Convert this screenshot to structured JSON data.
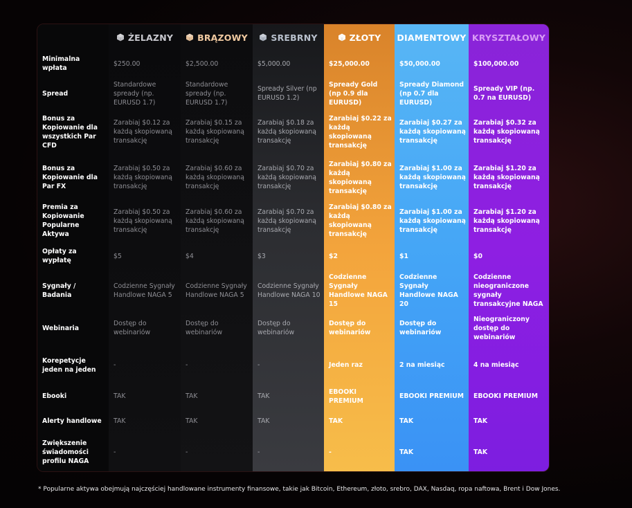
{
  "tiers": [
    {
      "name": "ŻELAZNY",
      "icon": "iron-cube-icon",
      "color": "#c9c9cf"
    },
    {
      "name": "BRĄZOWY",
      "icon": "bronze-cube-icon",
      "color": "#f0c9a0"
    },
    {
      "name": "SREBRNY",
      "icon": "silver-cube-icon",
      "color": "#b8c0cc"
    },
    {
      "name": "ZŁOTY",
      "icon": "gold-cube-icon",
      "color": "#ffffff"
    },
    {
      "name": "DIAMENTOWY",
      "icon": "",
      "color": "#ffffff"
    },
    {
      "name": "KRYSZTAŁOWY",
      "icon": "",
      "color": "#d99cf5"
    }
  ],
  "rows": [
    {
      "label": "Minimalna wpłata",
      "values": [
        "$250.00",
        "$2,500.00",
        "$5,000.00",
        "$25,000.00",
        "$50,000.00",
        "$100,000.00"
      ]
    },
    {
      "label": "Spread",
      "values": [
        "Standardowe spready (np. EURUSD 1.7)",
        "Standardowe spready (np. EURUSD 1.7)",
        "Spready Silver (np EURUSD 1.2)",
        "Spready Gold (np 0.9 dla EURUSD)",
        "Spready Diamond (np 0.7 dla EURUSD)",
        "Spready VIP (np. 0.7 na EURUSD)"
      ]
    },
    {
      "label": "Bonus za Kopiowanie dla wszystkich Par CFD",
      "values": [
        "Zarabiaj $0.12 za każdą skopiowaną transakcję",
        "Zarabiaj $0.15 za każdą skopiowaną transakcję",
        "Zarabiaj $0.18 za każdą skopiowaną transakcję",
        "Zarabiaj $0.22 za każdą skopiowaną transakcję",
        "Zarabiaj $0.27 za każdą skopiowaną transakcję",
        "Zarabiaj $0.32 za każdą skopiowaną transakcję"
      ]
    },
    {
      "label": "Bonus za Kopiowanie dla Par FX",
      "values": [
        "Zarabiaj $0.50 za każdą skopiowaną transakcję",
        "Zarabiaj $0.60 za każdą skopiowaną transakcję",
        "Zarabiaj $0.70 za każdą skopiowaną transakcję",
        "Zarabiaj $0.80 za każdą skopiowaną transakcję",
        "Zarabiaj $1.00 za każdą skopiowaną transakcję",
        "Zarabiaj $1.20 za każdą skopiowaną transakcję"
      ]
    },
    {
      "label": "Premia za Kopiowanie Popularne Aktywa",
      "values": [
        "Zarabiaj $0.50 za każdą skopiowaną transakcję",
        "Zarabiaj $0.60 za każdą skopiowaną transakcję",
        "Zarabiaj $0.70 za każdą skopiowaną transakcję",
        "Zarabiaj $0.80 za każdą skopiowaną transakcję",
        "Zarabiaj $1.00 za każdą skopiowaną transakcję",
        "Zarabiaj $1.20 za każdą skopiowaną transakcję"
      ]
    },
    {
      "label": "Opłaty za wypłatę",
      "values": [
        "$5",
        "$4",
        "$3",
        "$2",
        "$1",
        "$0"
      ]
    },
    {
      "label": "Sygnały / Badania",
      "values": [
        "Codzienne Sygnały Handlowe NAGA 5",
        "Codzienne Sygnały Handlowe NAGA 5",
        "Codzienne Sygnały Handlowe NAGA 10",
        "Codzienne Sygnały Handlowe NAGA 15",
        "Codzienne Sygnały Handlowe NAGA 20",
        "Codzienne nieograniczone sygnały transakcyjne NAGA"
      ]
    },
    {
      "label": "Webinaria",
      "values": [
        "Dostęp do webinariów",
        "Dostęp do webinariów",
        "Dostęp do webinariów",
        "Dostęp do webinariów",
        "Dostęp do webinariów",
        "Nieograniczony dostęp do webinariów"
      ]
    },
    {
      "label": "Korepetycje jeden na jeden",
      "values": [
        "-",
        "-",
        "-",
        "Jeden raz",
        "2 na miesiąc",
        "4 na miesiąc"
      ]
    },
    {
      "label": "Ebooki",
      "values": [
        "TAK",
        "TAK",
        "TAK",
        "EBOOKI PREMIUM",
        "EBOOKI PREMIUM",
        "EBOOKI PREMIUM"
      ]
    },
    {
      "label": "Alerty handlowe",
      "values": [
        "TAK",
        "TAK",
        "TAK",
        "TAK",
        "TAK",
        "TAK"
      ]
    },
    {
      "label": "Zwiększenie świadomości profilu NAGA",
      "values": [
        "-",
        "-",
        "-",
        "-",
        "TAK",
        "TAK"
      ]
    }
  ],
  "footnote": "* Popularne aktywa obejmują najczęściej handlowane instrumenty finansowe, takie jak Bitcoin, Ethereum, złoto, srebro, DAX, Nasdaq, ropa naftowa, Brent i Dow Jones."
}
